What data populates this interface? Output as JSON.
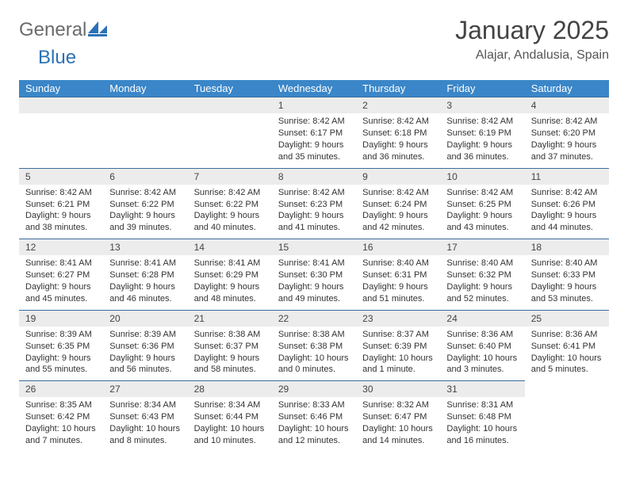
{
  "brand": {
    "part1": "General",
    "part2": "Blue"
  },
  "title": "January 2025",
  "location": "Alajar, Andalusia, Spain",
  "colors": {
    "header_bg": "#3a86c8",
    "row_divider": "#3a6da0",
    "daynum_bg": "#ececec",
    "brand_gray": "#6b6b6b",
    "brand_blue": "#2a72b5"
  },
  "dayNames": [
    "Sunday",
    "Monday",
    "Tuesday",
    "Wednesday",
    "Thursday",
    "Friday",
    "Saturday"
  ],
  "grid": {
    "leading_blanks": 3,
    "days": [
      {
        "n": 1,
        "sunrise": "8:42 AM",
        "sunset": "6:17 PM",
        "daylight": "9 hours and 35 minutes."
      },
      {
        "n": 2,
        "sunrise": "8:42 AM",
        "sunset": "6:18 PM",
        "daylight": "9 hours and 36 minutes."
      },
      {
        "n": 3,
        "sunrise": "8:42 AM",
        "sunset": "6:19 PM",
        "daylight": "9 hours and 36 minutes."
      },
      {
        "n": 4,
        "sunrise": "8:42 AM",
        "sunset": "6:20 PM",
        "daylight": "9 hours and 37 minutes."
      },
      {
        "n": 5,
        "sunrise": "8:42 AM",
        "sunset": "6:21 PM",
        "daylight": "9 hours and 38 minutes."
      },
      {
        "n": 6,
        "sunrise": "8:42 AM",
        "sunset": "6:22 PM",
        "daylight": "9 hours and 39 minutes."
      },
      {
        "n": 7,
        "sunrise": "8:42 AM",
        "sunset": "6:22 PM",
        "daylight": "9 hours and 40 minutes."
      },
      {
        "n": 8,
        "sunrise": "8:42 AM",
        "sunset": "6:23 PM",
        "daylight": "9 hours and 41 minutes."
      },
      {
        "n": 9,
        "sunrise": "8:42 AM",
        "sunset": "6:24 PM",
        "daylight": "9 hours and 42 minutes."
      },
      {
        "n": 10,
        "sunrise": "8:42 AM",
        "sunset": "6:25 PM",
        "daylight": "9 hours and 43 minutes."
      },
      {
        "n": 11,
        "sunrise": "8:42 AM",
        "sunset": "6:26 PM",
        "daylight": "9 hours and 44 minutes."
      },
      {
        "n": 12,
        "sunrise": "8:41 AM",
        "sunset": "6:27 PM",
        "daylight": "9 hours and 45 minutes."
      },
      {
        "n": 13,
        "sunrise": "8:41 AM",
        "sunset": "6:28 PM",
        "daylight": "9 hours and 46 minutes."
      },
      {
        "n": 14,
        "sunrise": "8:41 AM",
        "sunset": "6:29 PM",
        "daylight": "9 hours and 48 minutes."
      },
      {
        "n": 15,
        "sunrise": "8:41 AM",
        "sunset": "6:30 PM",
        "daylight": "9 hours and 49 minutes."
      },
      {
        "n": 16,
        "sunrise": "8:40 AM",
        "sunset": "6:31 PM",
        "daylight": "9 hours and 51 minutes."
      },
      {
        "n": 17,
        "sunrise": "8:40 AM",
        "sunset": "6:32 PM",
        "daylight": "9 hours and 52 minutes."
      },
      {
        "n": 18,
        "sunrise": "8:40 AM",
        "sunset": "6:33 PM",
        "daylight": "9 hours and 53 minutes."
      },
      {
        "n": 19,
        "sunrise": "8:39 AM",
        "sunset": "6:35 PM",
        "daylight": "9 hours and 55 minutes."
      },
      {
        "n": 20,
        "sunrise": "8:39 AM",
        "sunset": "6:36 PM",
        "daylight": "9 hours and 56 minutes."
      },
      {
        "n": 21,
        "sunrise": "8:38 AM",
        "sunset": "6:37 PM",
        "daylight": "9 hours and 58 minutes."
      },
      {
        "n": 22,
        "sunrise": "8:38 AM",
        "sunset": "6:38 PM",
        "daylight": "10 hours and 0 minutes."
      },
      {
        "n": 23,
        "sunrise": "8:37 AM",
        "sunset": "6:39 PM",
        "daylight": "10 hours and 1 minute."
      },
      {
        "n": 24,
        "sunrise": "8:36 AM",
        "sunset": "6:40 PM",
        "daylight": "10 hours and 3 minutes."
      },
      {
        "n": 25,
        "sunrise": "8:36 AM",
        "sunset": "6:41 PM",
        "daylight": "10 hours and 5 minutes."
      },
      {
        "n": 26,
        "sunrise": "8:35 AM",
        "sunset": "6:42 PM",
        "daylight": "10 hours and 7 minutes."
      },
      {
        "n": 27,
        "sunrise": "8:34 AM",
        "sunset": "6:43 PM",
        "daylight": "10 hours and 8 minutes."
      },
      {
        "n": 28,
        "sunrise": "8:34 AM",
        "sunset": "6:44 PM",
        "daylight": "10 hours and 10 minutes."
      },
      {
        "n": 29,
        "sunrise": "8:33 AM",
        "sunset": "6:46 PM",
        "daylight": "10 hours and 12 minutes."
      },
      {
        "n": 30,
        "sunrise": "8:32 AM",
        "sunset": "6:47 PM",
        "daylight": "10 hours and 14 minutes."
      },
      {
        "n": 31,
        "sunrise": "8:31 AM",
        "sunset": "6:48 PM",
        "daylight": "10 hours and 16 minutes."
      }
    ]
  },
  "labels": {
    "sunrise_prefix": "Sunrise: ",
    "sunset_prefix": "Sunset: ",
    "daylight_prefix": "Daylight: "
  }
}
